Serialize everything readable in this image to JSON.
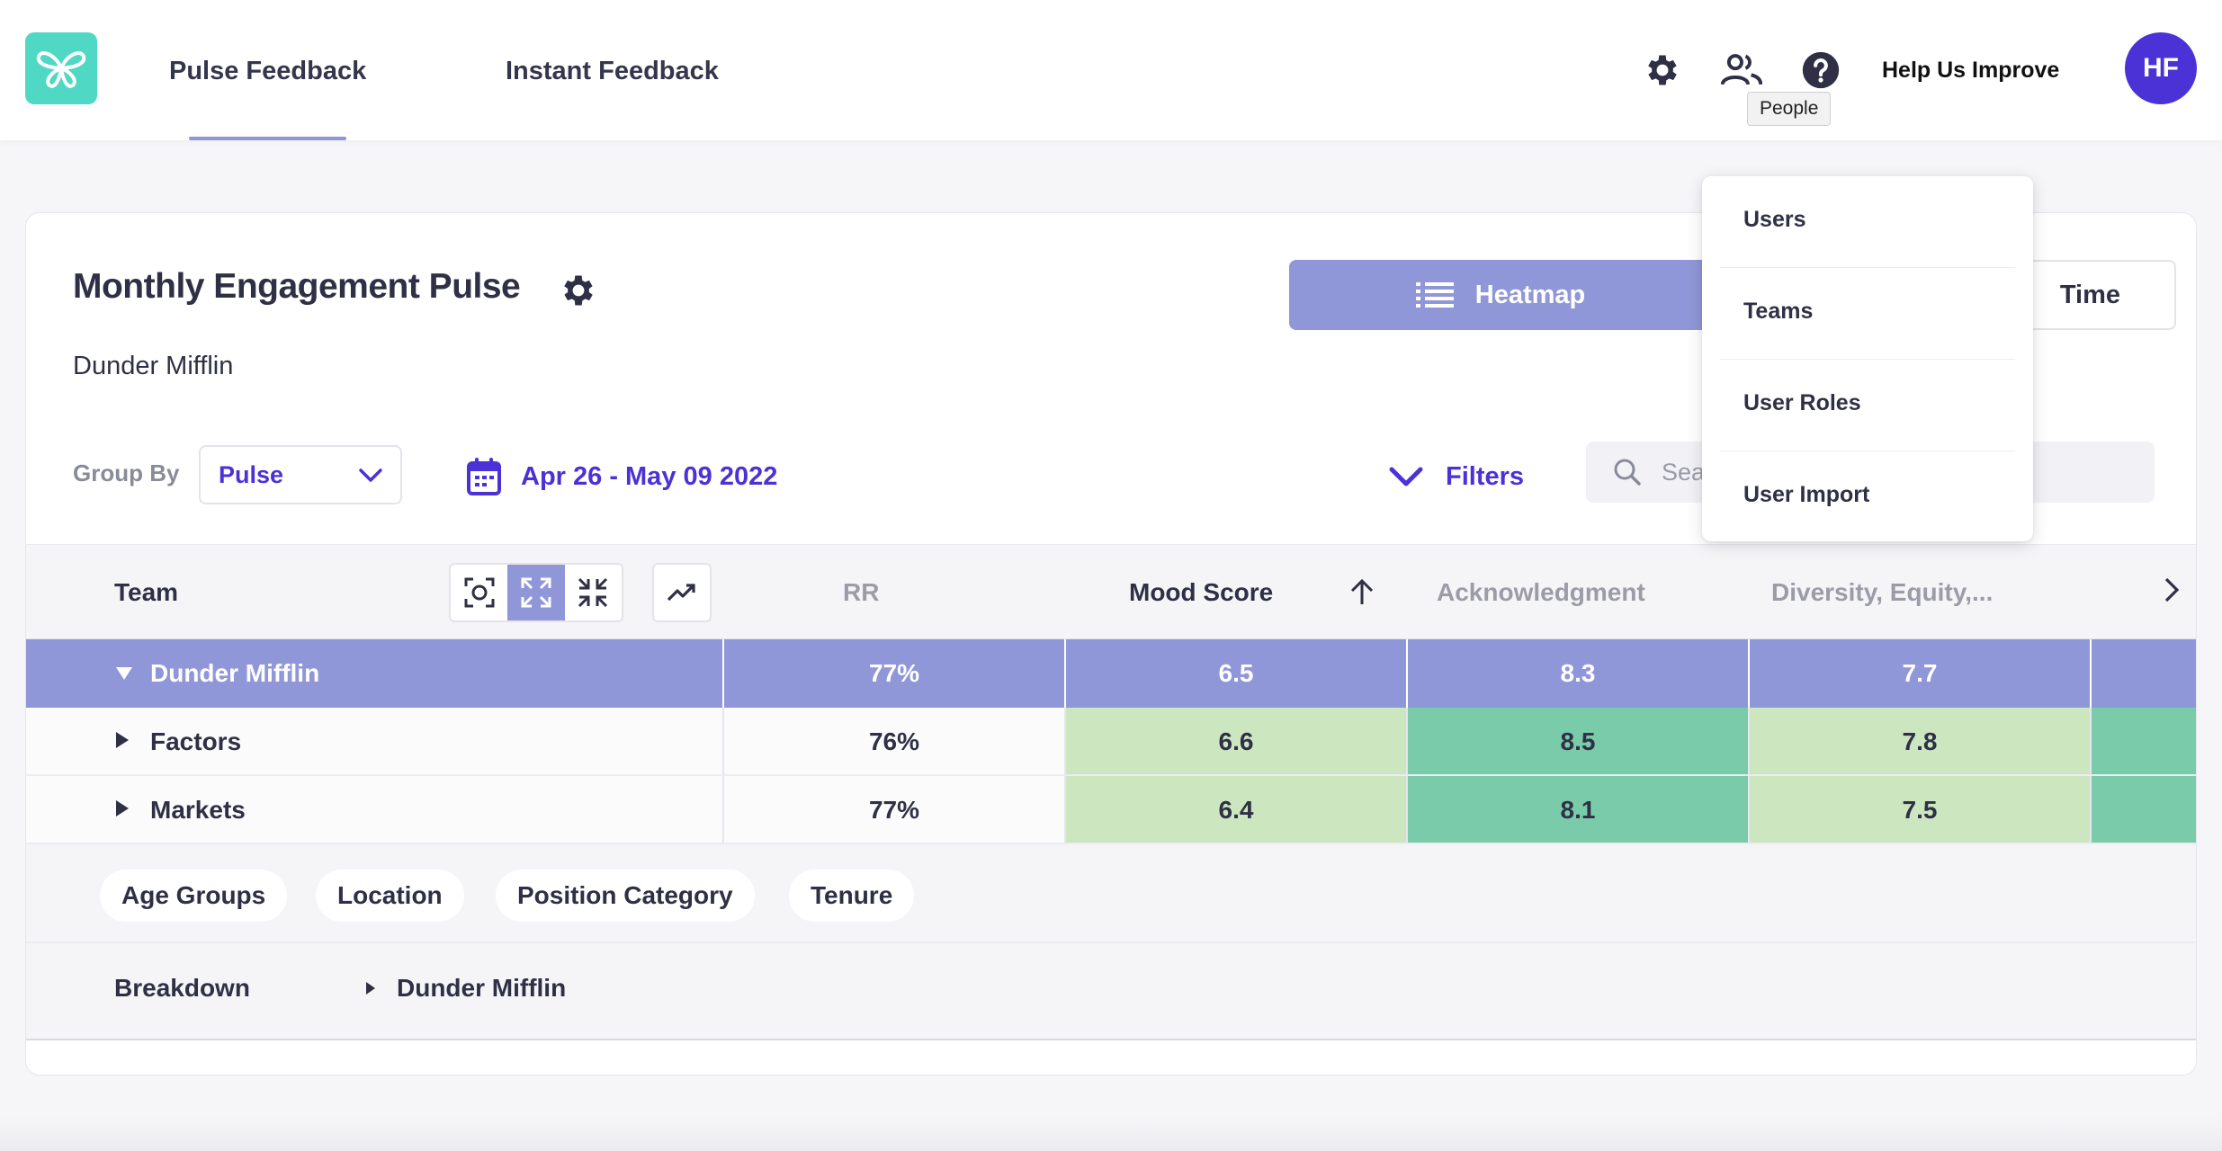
{
  "nav": {
    "tabs": [
      {
        "label": "Pulse Feedback",
        "active": true
      },
      {
        "label": "Instant Feedback",
        "active": false
      }
    ],
    "icons": [
      "gear-icon",
      "people-icon",
      "help-icon"
    ],
    "help_link": "Help Us Improve",
    "avatar_initials": "HF",
    "tooltip": "People"
  },
  "colors": {
    "brand_teal": "#4fd8c4",
    "accent_purple": "#4b32d6",
    "heatmap_header": "#9097d8",
    "score_light_green": "#cce6c0",
    "score_dark_green": "#7acba9"
  },
  "header": {
    "title": "Monthly Engagement Pulse",
    "subtitle": "Dunder Mifflin",
    "view_toggle": {
      "heatmap": "Heatmap",
      "other": "Time"
    }
  },
  "controls": {
    "group_by_label": "Group By",
    "group_by_value": "Pulse",
    "date_range": "Apr 26 - May 09 2022",
    "filters_label": "Filters",
    "search_placeholder": "Sea"
  },
  "table": {
    "columns": {
      "team": "Team",
      "rr": "RR",
      "mood": "Mood Score",
      "ack": "Acknowledgment",
      "dei": "Diversity, Equity,..."
    },
    "rows": [
      {
        "name": "Dunder Mifflin",
        "expanded": true,
        "rr": "77%",
        "mood": "6.5",
        "ack": "8.3",
        "dei": "7.7"
      },
      {
        "name": "Factors",
        "expanded": false,
        "rr": "76%",
        "mood": "6.6",
        "ack": "8.5",
        "dei": "7.8"
      },
      {
        "name": "Markets",
        "expanded": false,
        "rr": "77%",
        "mood": "6.4",
        "ack": "8.1",
        "dei": "7.5"
      }
    ]
  },
  "chips": [
    "Age Groups",
    "Location",
    "Position Category",
    "Tenure"
  ],
  "breakdown": {
    "label": "Breakdown",
    "crumb": "Dunder Mifflin"
  },
  "dropdown": {
    "items": [
      "Users",
      "Teams",
      "User Roles",
      "User Import"
    ]
  }
}
